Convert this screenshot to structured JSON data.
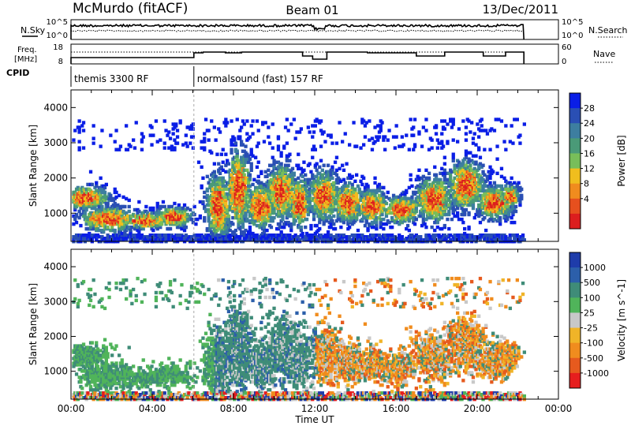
{
  "header": {
    "station": "McMurdo (fitACF)",
    "beam": "Beam 01",
    "date": "13/Dec/2011"
  },
  "summary_panels": {
    "nsky": {
      "label": "N.Sky",
      "ticks": [
        "10^5",
        "10^0"
      ]
    },
    "nsearch": {
      "label": "N.Search",
      "ticks": [
        "10^5",
        "10^0"
      ]
    },
    "freq": {
      "label_top": "Freq.",
      "label_bottom": "[MHz]",
      "ticks": [
        "18",
        "8"
      ]
    },
    "nave": {
      "label": "Nave",
      "ticks": [
        "60",
        "0"
      ]
    },
    "cpid": {
      "label": "CPID",
      "modes": [
        {
          "name": "themis 3300 RF",
          "start_hour": 0.0,
          "end_hour": 6.05
        },
        {
          "name": "normalsound (fast) 157 RF",
          "start_hour": 6.05,
          "end_hour": 22.3
        }
      ]
    }
  },
  "chart_data": [
    {
      "type": "heatmap",
      "name": "power-panel",
      "ylabel": "Slant Range [km]",
      "xlabel": "",
      "x_range": [
        0,
        24
      ],
      "ylim": [
        200,
        4500
      ],
      "yticks": [
        1000,
        2000,
        3000,
        4000
      ],
      "colorbar": {
        "label": "Power [dB]",
        "ticks": [
          "28",
          "24",
          "20",
          "16",
          "12",
          "8",
          "4"
        ],
        "colors": [
          "#0a1ee6",
          "#2a4fb4",
          "#3d7ea0",
          "#4a9a78",
          "#78be5a",
          "#f0be1e",
          "#f08c1e",
          "#e6501e",
          "#dc1e1e"
        ]
      },
      "data_end_hour": 22.3
    },
    {
      "type": "heatmap",
      "name": "velocity-panel",
      "ylabel": "Slant Range [km]",
      "xlabel": "Time UT",
      "x_range": [
        0,
        24
      ],
      "ylim": [
        200,
        4500
      ],
      "yticks": [
        1000,
        2000,
        3000,
        4000
      ],
      "xticks": [
        "00:00",
        "04:00",
        "08:00",
        "12:00",
        "16:00",
        "20:00",
        "00:00"
      ],
      "colorbar": {
        "label": "Velocity [m s^-1]",
        "ticks": [
          "1000",
          "500",
          "100",
          "25",
          "-25",
          "-100",
          "-500",
          "-1000"
        ],
        "colors": [
          "#1e3caa",
          "#2c5faa",
          "#3f8c78",
          "#50b45a",
          "#c8c8c8",
          "#f0b428",
          "#f08c1e",
          "#e65a1e",
          "#e61e1e"
        ]
      },
      "data_end_hour": 22.3
    }
  ]
}
